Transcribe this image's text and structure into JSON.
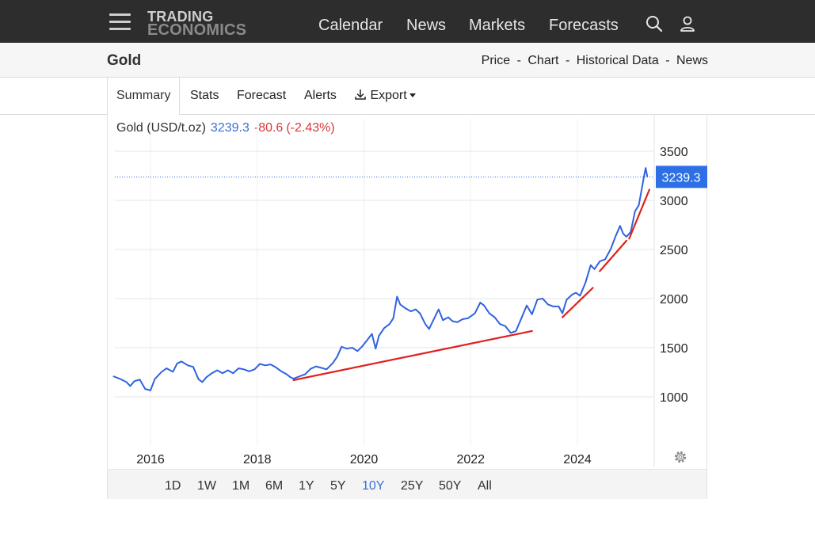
{
  "nav": {
    "logo_line1": "TRADING",
    "logo_line2": "ECONOMICS",
    "links": [
      "Calendar",
      "News",
      "Markets",
      "Forecasts"
    ],
    "icons": [
      "search-icon",
      "user-icon",
      "hamburger-menu-icon"
    ]
  },
  "subheader": {
    "title": "Gold",
    "links": [
      "Price",
      "Chart",
      "Historical Data",
      "News"
    ],
    "separator": "-"
  },
  "tabs": {
    "items": [
      "Summary",
      "Stats",
      "Forecast",
      "Alerts",
      "Export"
    ],
    "active": "Summary"
  },
  "chart_legend": {
    "name": "Gold (USD/t.oz)",
    "value": "3239.3",
    "change": "-80.6",
    "change_pct": "(-2.43%)"
  },
  "ranges": {
    "items": [
      "1D",
      "1W",
      "1M",
      "6M",
      "1Y",
      "5Y",
      "10Y",
      "25Y",
      "50Y",
      "All"
    ],
    "active": "10Y"
  },
  "colors": {
    "nav_bg": "#2d2d2d",
    "line": "#2f63e0",
    "trend": "#e0201c",
    "value_badge": "#2f6fe6",
    "negative": "#d9383a",
    "accent": "#3b6fd6"
  },
  "chart_data": {
    "type": "line",
    "title": "",
    "xlabel": "",
    "ylabel": "",
    "ylim": [
      500,
      3800
    ],
    "xlim": [
      2015.3,
      2025.4
    ],
    "x_ticks": [
      2016,
      2018,
      2020,
      2022,
      2024
    ],
    "x_tick_labels": [
      "2016",
      "2018",
      "2020",
      "2022",
      "2024"
    ],
    "y_ticks": [
      1000,
      1500,
      2000,
      2500,
      3000,
      3500
    ],
    "y_tick_labels": [
      "1000",
      "1500",
      "2000",
      "2500",
      "3000",
      "3500"
    ],
    "grid": true,
    "last_value_label": "3239.3",
    "last_value": 3239.3,
    "series": [
      {
        "points": [
          [
            2015.3,
            1210
          ],
          [
            2015.42,
            1185
          ],
          [
            2015.55,
            1150
          ],
          [
            2015.62,
            1110
          ],
          [
            2015.7,
            1160
          ],
          [
            2015.8,
            1175
          ],
          [
            2015.9,
            1080
          ],
          [
            2016.0,
            1065
          ],
          [
            2016.08,
            1180
          ],
          [
            2016.2,
            1250
          ],
          [
            2016.3,
            1290
          ],
          [
            2016.42,
            1255
          ],
          [
            2016.5,
            1340
          ],
          [
            2016.58,
            1360
          ],
          [
            2016.7,
            1320
          ],
          [
            2016.8,
            1305
          ],
          [
            2016.9,
            1180
          ],
          [
            2016.97,
            1150
          ],
          [
            2017.05,
            1200
          ],
          [
            2017.15,
            1240
          ],
          [
            2017.25,
            1270
          ],
          [
            2017.35,
            1240
          ],
          [
            2017.45,
            1270
          ],
          [
            2017.55,
            1240
          ],
          [
            2017.65,
            1290
          ],
          [
            2017.75,
            1280
          ],
          [
            2017.85,
            1260
          ],
          [
            2017.95,
            1280
          ],
          [
            2018.05,
            1335
          ],
          [
            2018.15,
            1320
          ],
          [
            2018.25,
            1330
          ],
          [
            2018.35,
            1300
          ],
          [
            2018.45,
            1260
          ],
          [
            2018.55,
            1230
          ],
          [
            2018.62,
            1200
          ],
          [
            2018.68,
            1185
          ],
          [
            2018.8,
            1210
          ],
          [
            2018.9,
            1230
          ],
          [
            2019.0,
            1285
          ],
          [
            2019.1,
            1310
          ],
          [
            2019.2,
            1295
          ],
          [
            2019.3,
            1280
          ],
          [
            2019.42,
            1345
          ],
          [
            2019.5,
            1410
          ],
          [
            2019.58,
            1510
          ],
          [
            2019.68,
            1490
          ],
          [
            2019.78,
            1500
          ],
          [
            2019.88,
            1465
          ],
          [
            2019.97,
            1515
          ],
          [
            2020.05,
            1570
          ],
          [
            2020.15,
            1640
          ],
          [
            2020.22,
            1490
          ],
          [
            2020.28,
            1620
          ],
          [
            2020.38,
            1700
          ],
          [
            2020.48,
            1740
          ],
          [
            2020.55,
            1800
          ],
          [
            2020.62,
            2020
          ],
          [
            2020.68,
            1940
          ],
          [
            2020.78,
            1900
          ],
          [
            2020.88,
            1870
          ],
          [
            2020.97,
            1890
          ],
          [
            2021.05,
            1850
          ],
          [
            2021.15,
            1740
          ],
          [
            2021.22,
            1690
          ],
          [
            2021.3,
            1780
          ],
          [
            2021.4,
            1890
          ],
          [
            2021.48,
            1780
          ],
          [
            2021.58,
            1810
          ],
          [
            2021.66,
            1770
          ],
          [
            2021.75,
            1760
          ],
          [
            2021.85,
            1790
          ],
          [
            2021.95,
            1800
          ],
          [
            2022.08,
            1850
          ],
          [
            2022.18,
            1960
          ],
          [
            2022.25,
            1930
          ],
          [
            2022.35,
            1850
          ],
          [
            2022.45,
            1810
          ],
          [
            2022.55,
            1740
          ],
          [
            2022.65,
            1720
          ],
          [
            2022.75,
            1650
          ],
          [
            2022.85,
            1670
          ],
          [
            2022.95,
            1800
          ],
          [
            2023.05,
            1930
          ],
          [
            2023.15,
            1840
          ],
          [
            2023.25,
            1990
          ],
          [
            2023.35,
            2000
          ],
          [
            2023.45,
            1940
          ],
          [
            2023.55,
            1920
          ],
          [
            2023.65,
            1920
          ],
          [
            2023.72,
            1850
          ],
          [
            2023.8,
            1990
          ],
          [
            2023.9,
            2040
          ],
          [
            2023.97,
            2060
          ],
          [
            2024.05,
            2030
          ],
          [
            2024.15,
            2160
          ],
          [
            2024.25,
            2340
          ],
          [
            2024.32,
            2300
          ],
          [
            2024.42,
            2380
          ],
          [
            2024.52,
            2400
          ],
          [
            2024.62,
            2500
          ],
          [
            2024.72,
            2640
          ],
          [
            2024.8,
            2740
          ],
          [
            2024.86,
            2660
          ],
          [
            2024.92,
            2630
          ],
          [
            2025.0,
            2680
          ],
          [
            2025.08,
            2890
          ],
          [
            2025.15,
            2950
          ],
          [
            2025.2,
            3100
          ],
          [
            2025.25,
            3250
          ],
          [
            2025.28,
            3330
          ],
          [
            2025.31,
            3239.3
          ]
        ]
      }
    ],
    "trendlines": [
      [
        [
          2018.68,
          1170
        ],
        [
          2023.15,
          1670
        ]
      ],
      [
        [
          2023.72,
          1810
        ],
        [
          2024.29,
          2110
        ]
      ],
      [
        [
          2024.42,
          2280
        ],
        [
          2024.92,
          2590
        ]
      ],
      [
        [
          2024.97,
          2610
        ],
        [
          2025.35,
          3110
        ]
      ]
    ]
  }
}
